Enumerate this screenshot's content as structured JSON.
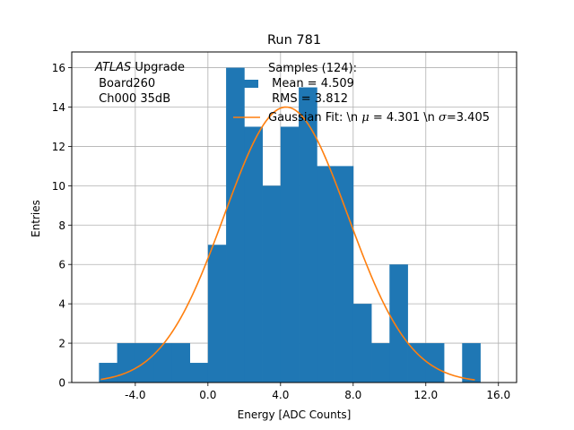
{
  "chart_data": {
    "type": "bar",
    "title": "Run 781",
    "xlabel": "Energy [ADC Counts]",
    "ylabel": "Entries",
    "xlim": [
      -7.5,
      17.0
    ],
    "ylim": [
      0,
      16.8
    ],
    "grid": true,
    "x_ticks": [
      -4.0,
      0.0,
      4.0,
      8.0,
      12.0,
      16.0
    ],
    "x_tick_labels": [
      "-4.0",
      "0.0",
      "4.0",
      "8.0",
      "12.0",
      "16.0"
    ],
    "y_ticks": [
      0,
      2,
      4,
      6,
      8,
      10,
      12,
      14,
      16
    ],
    "y_tick_labels": [
      "0",
      "2",
      "4",
      "6",
      "8",
      "10",
      "12",
      "14",
      "16"
    ],
    "bin_width": 1.0,
    "bin_start": -6.0,
    "values": [
      1,
      2,
      2,
      2,
      2,
      1,
      7,
      16,
      13,
      10,
      13,
      15,
      11,
      11,
      4,
      2,
      6,
      2,
      2,
      0,
      2
    ],
    "series": [
      {
        "name": "Samples (124):\n Mean = 4.509\n RMS = 3.812",
        "type": "histogram",
        "color": "#1f77b4"
      },
      {
        "name": "Gaussian Fit: \\n $\\mu$ = 4.301 \\n $\\sigma$=3.405",
        "type": "line",
        "color": "#ff7f0e",
        "mu": 4.301,
        "sigma": 3.405,
        "amplitude": 14.0,
        "x_range": [
          -5.9,
          14.7
        ]
      }
    ],
    "annotation": {
      "italic": "ATLAS",
      "line1_rest": " Upgrade",
      "line2": " Board260",
      "line3": " Ch000 35dB"
    },
    "legend": {
      "placement": "top-center",
      "samples_line1": "Samples (124):",
      "samples_line2": " Mean = 4.509",
      "samples_line3": " RMS = 3.812",
      "fit_label_pre": "Gaussian Fit: \\n ",
      "fit_mu": "μ",
      "fit_label_mid": " = 4.301 \\n ",
      "fit_sigma": "σ",
      "fit_label_post": "=3.405"
    }
  }
}
